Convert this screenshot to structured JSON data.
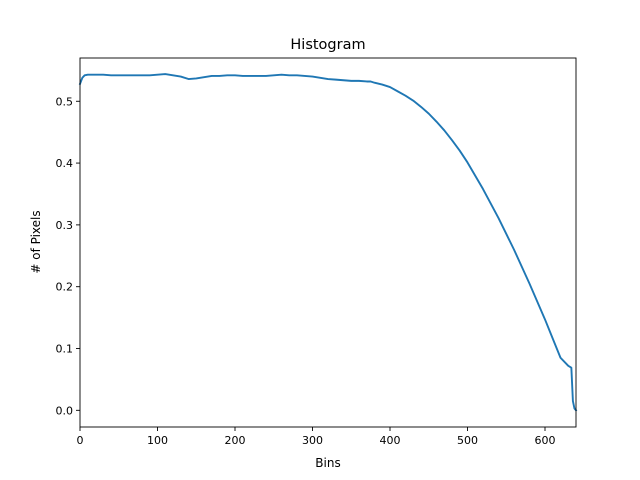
{
  "chart_data": {
    "type": "line",
    "title": "Histogram",
    "xlabel": "Bins",
    "ylabel": "# of Pixels",
    "xlim": [
      0,
      640
    ],
    "ylim": [
      -0.027,
      0.57
    ],
    "xticks": [
      0,
      100,
      200,
      300,
      400,
      500,
      600
    ],
    "yticks": [
      0.0,
      0.1,
      0.2,
      0.3,
      0.4,
      0.5
    ],
    "ytick_labels": [
      "0.0",
      "0.1",
      "0.2",
      "0.3",
      "0.4",
      "0.5"
    ],
    "grid": false,
    "legend": "none",
    "series": [
      {
        "color": "#1f77b4",
        "x": [
          0,
          3,
          6,
          10,
          20,
          30,
          40,
          50,
          60,
          70,
          80,
          90,
          100,
          110,
          120,
          130,
          140,
          150,
          160,
          170,
          180,
          190,
          200,
          210,
          220,
          230,
          240,
          250,
          260,
          270,
          280,
          290,
          300,
          310,
          320,
          330,
          340,
          350,
          360,
          370,
          375,
          380,
          390,
          400,
          410,
          420,
          430,
          440,
          450,
          460,
          470,
          480,
          490,
          500,
          520,
          540,
          560,
          580,
          600,
          610,
          620,
          630,
          634,
          636,
          638,
          640
        ],
        "y": [
          0.528,
          0.538,
          0.542,
          0.543,
          0.543,
          0.543,
          0.542,
          0.542,
          0.542,
          0.542,
          0.542,
          0.542,
          0.543,
          0.544,
          0.542,
          0.54,
          0.536,
          0.537,
          0.539,
          0.541,
          0.541,
          0.542,
          0.542,
          0.541,
          0.541,
          0.541,
          0.541,
          0.542,
          0.543,
          0.542,
          0.542,
          0.541,
          0.54,
          0.538,
          0.536,
          0.535,
          0.534,
          0.533,
          0.533,
          0.532,
          0.532,
          0.53,
          0.527,
          0.523,
          0.516,
          0.509,
          0.501,
          0.491,
          0.48,
          0.467,
          0.453,
          0.437,
          0.42,
          0.401,
          0.358,
          0.311,
          0.26,
          0.205,
          0.147,
          0.116,
          0.085,
          0.072,
          0.069,
          0.015,
          0.003,
          0.0
        ]
      }
    ]
  }
}
